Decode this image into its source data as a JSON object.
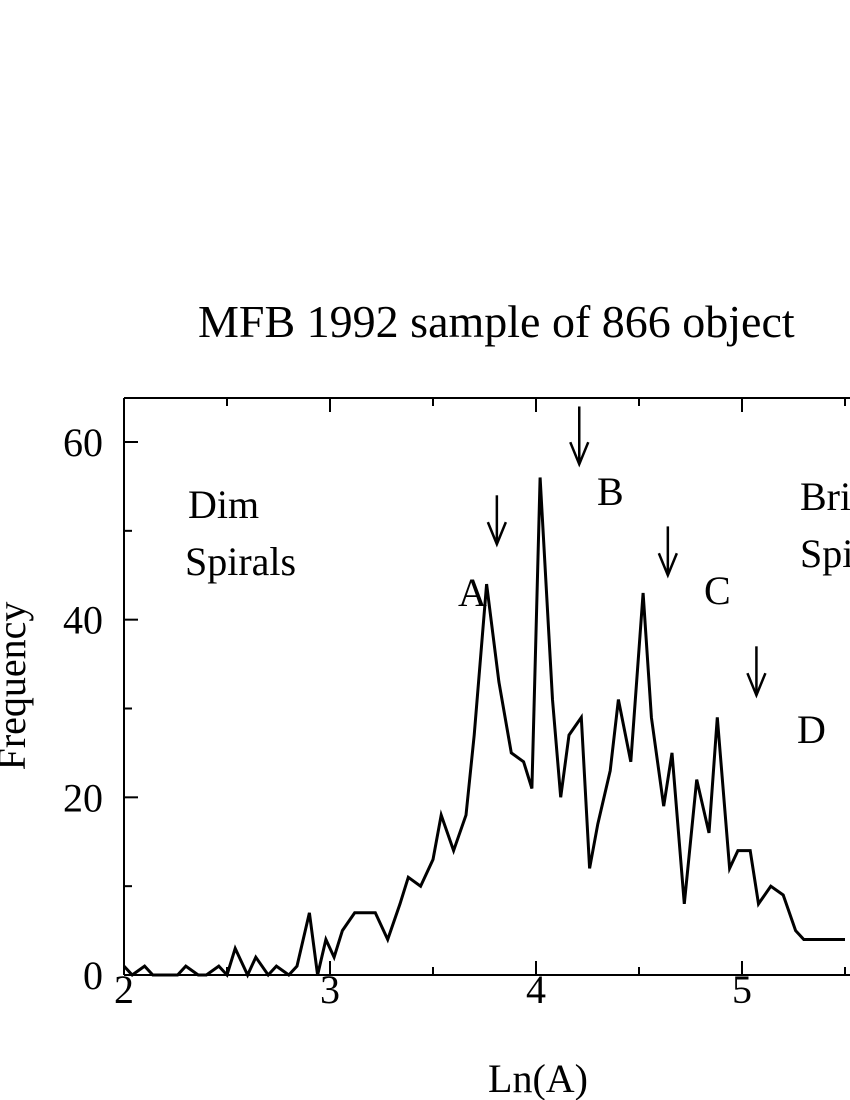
{
  "chart_data": {
    "type": "line",
    "title": "MFB 1992 sample of 866 object",
    "xlabel": "Ln(A)",
    "ylabel": "Frequency",
    "xlim": [
      2,
      5.5
    ],
    "ylim": [
      0,
      65
    ],
    "xticks": [
      2,
      3,
      4,
      5
    ],
    "yticks": [
      0,
      20,
      40,
      60
    ],
    "grid": false,
    "annotations": {
      "dim": [
        "Dim",
        "Spirals"
      ],
      "bright": [
        "Bri",
        "Spi"
      ],
      "peaks": [
        {
          "label": "A",
          "x": 3.81,
          "y_top": 54,
          "y_tip": 48.5
        },
        {
          "label": "B",
          "x": 4.21,
          "y_top": 64,
          "y_tip": 57.5
        },
        {
          "label": "C",
          "x": 4.64,
          "y_top": 50.5,
          "y_tip": 45
        },
        {
          "label": "D",
          "x": 5.07,
          "y_top": 37,
          "y_tip": 31.5
        }
      ]
    },
    "series": [
      {
        "x": [
          2.0,
          2.04,
          2.1,
          2.14,
          2.2,
          2.26,
          2.3,
          2.36,
          2.4,
          2.46,
          2.5,
          2.54,
          2.6,
          2.64,
          2.7,
          2.74,
          2.8,
          2.84,
          2.9,
          2.94,
          2.98,
          3.02,
          3.06,
          3.12,
          3.16,
          3.22,
          3.28,
          3.34,
          3.38,
          3.44,
          3.5,
          3.54,
          3.6,
          3.66,
          3.7,
          3.76,
          3.82,
          3.88,
          3.94,
          3.98,
          4.02,
          4.08,
          4.12,
          4.16,
          4.22,
          4.26,
          4.3,
          4.36,
          4.4,
          4.46,
          4.52,
          4.56,
          4.62,
          4.66,
          4.72,
          4.78,
          4.84,
          4.88,
          4.94,
          4.98,
          5.04,
          5.08,
          5.14,
          5.2,
          5.26,
          5.3,
          5.36,
          5.4,
          5.44,
          5.5
        ],
        "y": [
          1,
          0,
          1,
          0,
          0,
          0,
          1,
          0,
          0,
          1,
          0,
          3,
          0,
          2,
          0,
          1,
          0,
          1,
          7,
          0,
          4,
          2,
          5,
          7,
          7,
          7,
          4,
          8,
          11,
          10,
          13,
          18,
          14,
          18,
          27,
          44,
          33,
          25,
          24,
          21,
          56,
          31,
          20,
          27,
          29,
          12,
          17,
          23,
          31,
          24,
          43,
          29,
          19,
          25,
          8,
          22,
          16,
          29,
          12,
          14,
          14,
          8,
          10,
          9,
          5,
          4,
          4,
          4,
          4,
          4
        ]
      }
    ]
  }
}
